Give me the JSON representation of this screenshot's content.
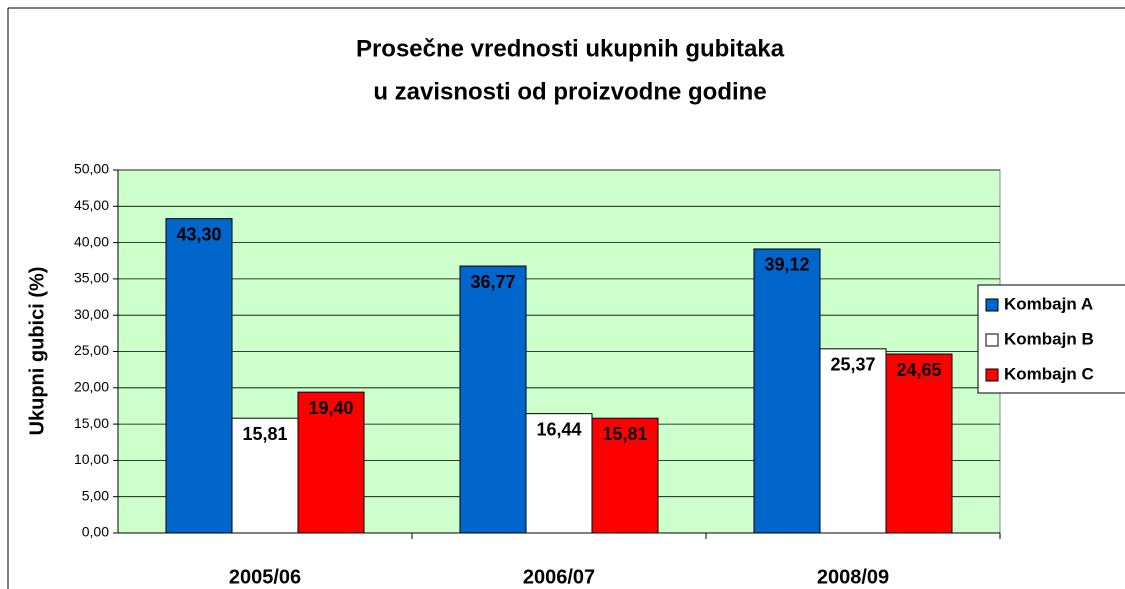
{
  "chart_data": {
    "type": "bar",
    "title": [
      "Prosečne vrednosti ukupnih gubitaka",
      "u zavisnosti od proizvodne godine"
    ],
    "y_label": "Ukupni gubici (%)",
    "categories": [
      "2005/06",
      "2006/07",
      "2008/09"
    ],
    "series": [
      {
        "name": "Kombajn A",
        "color": "#0066cc",
        "values": [
          43.3,
          36.77,
          39.12
        ],
        "value_labels": [
          "43,30",
          "36,77",
          "39,12"
        ]
      },
      {
        "name": "Kombajn B",
        "color": "#ffffff",
        "values": [
          15.81,
          16.44,
          25.37
        ],
        "value_labels": [
          "15,81",
          "16,44",
          "25,37"
        ]
      },
      {
        "name": "Kombajn C",
        "color": "#ff0000",
        "values": [
          19.4,
          15.81,
          24.65
        ],
        "value_labels": [
          "19,40",
          "15,81",
          "24,65"
        ]
      }
    ],
    "ylim": [
      0,
      50
    ],
    "yticks": [
      {
        "value": 0,
        "label": "0,00"
      },
      {
        "value": 5,
        "label": "5,00"
      },
      {
        "value": 10,
        "label": "10,00"
      },
      {
        "value": 15,
        "label": "15,00"
      },
      {
        "value": 20,
        "label": "20,00"
      },
      {
        "value": 25,
        "label": "25,00"
      },
      {
        "value": 30,
        "label": "30,00"
      },
      {
        "value": 35,
        "label": "35,00"
      },
      {
        "value": 40,
        "label": "40,00"
      },
      {
        "value": 45,
        "label": "45,00"
      },
      {
        "value": 50,
        "label": "50,00"
      }
    ],
    "grid": true,
    "plot_background": "#ccffcc",
    "legend": "right"
  }
}
